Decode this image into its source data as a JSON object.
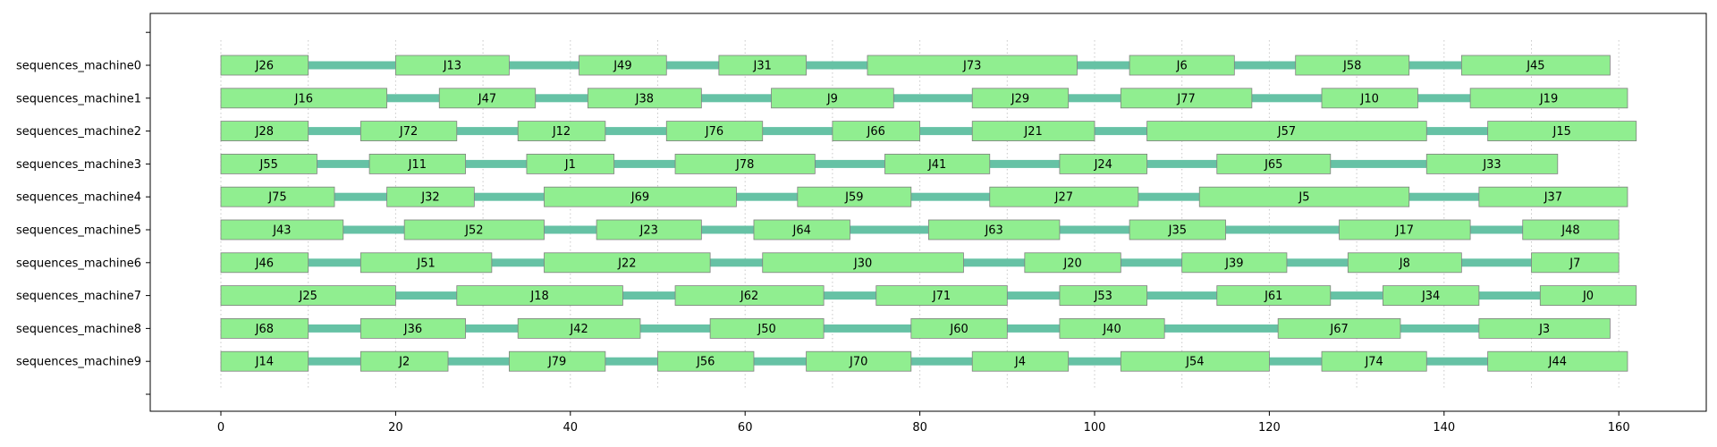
{
  "chart_data": {
    "type": "gantt",
    "x_ticks": [
      0,
      20,
      40,
      60,
      80,
      100,
      120,
      140,
      160
    ],
    "xlim": [
      -8,
      170
    ],
    "grid": "vertical dotted every 10 units",
    "colors": {
      "job": "#90ee90",
      "job_edge": "#808080",
      "idle": "#66c2a5",
      "grid": "#c8c8c8"
    },
    "machines": [
      {
        "name": "sequences_machine0",
        "end": 159,
        "jobs": [
          {
            "label": "J26",
            "start": 0,
            "end": 10
          },
          {
            "label": "J13",
            "start": 20,
            "end": 33
          },
          {
            "label": "J49",
            "start": 41,
            "end": 51
          },
          {
            "label": "J31",
            "start": 57,
            "end": 67
          },
          {
            "label": "J73",
            "start": 74,
            "end": 98
          },
          {
            "label": "J6",
            "start": 104,
            "end": 116
          },
          {
            "label": "J58",
            "start": 123,
            "end": 136
          },
          {
            "label": "J45",
            "start": 142,
            "end": 159
          }
        ]
      },
      {
        "name": "sequences_machine1",
        "end": 161,
        "jobs": [
          {
            "label": "J16",
            "start": 0,
            "end": 19
          },
          {
            "label": "J47",
            "start": 25,
            "end": 36
          },
          {
            "label": "J38",
            "start": 42,
            "end": 55
          },
          {
            "label": "J9",
            "start": 63,
            "end": 77
          },
          {
            "label": "J29",
            "start": 86,
            "end": 97
          },
          {
            "label": "J77",
            "start": 103,
            "end": 118
          },
          {
            "label": "J10",
            "start": 126,
            "end": 137
          },
          {
            "label": "J19",
            "start": 143,
            "end": 161
          }
        ]
      },
      {
        "name": "sequences_machine2",
        "end": 162,
        "jobs": [
          {
            "label": "J28",
            "start": 0,
            "end": 10
          },
          {
            "label": "J72",
            "start": 16,
            "end": 27
          },
          {
            "label": "J12",
            "start": 34,
            "end": 44
          },
          {
            "label": "J76",
            "start": 51,
            "end": 62
          },
          {
            "label": "J66",
            "start": 70,
            "end": 80
          },
          {
            "label": "J21",
            "start": 86,
            "end": 100
          },
          {
            "label": "J57",
            "start": 106,
            "end": 138
          },
          {
            "label": "J15",
            "start": 145,
            "end": 162
          }
        ]
      },
      {
        "name": "sequences_machine3",
        "end": 153,
        "jobs": [
          {
            "label": "J55",
            "start": 0,
            "end": 11
          },
          {
            "label": "J11",
            "start": 17,
            "end": 28
          },
          {
            "label": "J1",
            "start": 35,
            "end": 45
          },
          {
            "label": "J78",
            "start": 52,
            "end": 68
          },
          {
            "label": "J41",
            "start": 76,
            "end": 88
          },
          {
            "label": "J24",
            "start": 96,
            "end": 106
          },
          {
            "label": "J65",
            "start": 114,
            "end": 127
          },
          {
            "label": "J33",
            "start": 138,
            "end": 153
          }
        ]
      },
      {
        "name": "sequences_machine4",
        "end": 161,
        "jobs": [
          {
            "label": "J75",
            "start": 0,
            "end": 13
          },
          {
            "label": "J32",
            "start": 19,
            "end": 29
          },
          {
            "label": "J69",
            "start": 37,
            "end": 59
          },
          {
            "label": "J59",
            "start": 66,
            "end": 79
          },
          {
            "label": "J27",
            "start": 88,
            "end": 105
          },
          {
            "label": "J5",
            "start": 112,
            "end": 136
          },
          {
            "label": "J37",
            "start": 144,
            "end": 161
          }
        ]
      },
      {
        "name": "sequences_machine5",
        "end": 160,
        "jobs": [
          {
            "label": "J43",
            "start": 0,
            "end": 14
          },
          {
            "label": "J52",
            "start": 21,
            "end": 37
          },
          {
            "label": "J23",
            "start": 43,
            "end": 55
          },
          {
            "label": "J64",
            "start": 61,
            "end": 72
          },
          {
            "label": "J63",
            "start": 81,
            "end": 96
          },
          {
            "label": "J35",
            "start": 104,
            "end": 115
          },
          {
            "label": "J17",
            "start": 128,
            "end": 143
          },
          {
            "label": "J48",
            "start": 149,
            "end": 160
          }
        ]
      },
      {
        "name": "sequences_machine6",
        "end": 160,
        "jobs": [
          {
            "label": "J46",
            "start": 0,
            "end": 10
          },
          {
            "label": "J51",
            "start": 16,
            "end": 31
          },
          {
            "label": "J22",
            "start": 37,
            "end": 56
          },
          {
            "label": "J30",
            "start": 62,
            "end": 85
          },
          {
            "label": "J20",
            "start": 92,
            "end": 103
          },
          {
            "label": "J39",
            "start": 110,
            "end": 122
          },
          {
            "label": "J8",
            "start": 129,
            "end": 142
          },
          {
            "label": "J7",
            "start": 150,
            "end": 160
          }
        ]
      },
      {
        "name": "sequences_machine7",
        "end": 162,
        "jobs": [
          {
            "label": "J25",
            "start": 0,
            "end": 20
          },
          {
            "label": "J18",
            "start": 27,
            "end": 46
          },
          {
            "label": "J62",
            "start": 52,
            "end": 69
          },
          {
            "label": "J71",
            "start": 75,
            "end": 90
          },
          {
            "label": "J53",
            "start": 96,
            "end": 106
          },
          {
            "label": "J61",
            "start": 114,
            "end": 127
          },
          {
            "label": "J34",
            "start": 133,
            "end": 144
          },
          {
            "label": "J0",
            "start": 151,
            "end": 162
          }
        ]
      },
      {
        "name": "sequences_machine8",
        "end": 159,
        "jobs": [
          {
            "label": "J68",
            "start": 0,
            "end": 10
          },
          {
            "label": "J36",
            "start": 16,
            "end": 28
          },
          {
            "label": "J42",
            "start": 34,
            "end": 48
          },
          {
            "label": "J50",
            "start": 56,
            "end": 69
          },
          {
            "label": "J60",
            "start": 79,
            "end": 90
          },
          {
            "label": "J40",
            "start": 96,
            "end": 108
          },
          {
            "label": "J67",
            "start": 121,
            "end": 135
          },
          {
            "label": "J3",
            "start": 144,
            "end": 159
          }
        ]
      },
      {
        "name": "sequences_machine9",
        "end": 161,
        "jobs": [
          {
            "label": "J14",
            "start": 0,
            "end": 10
          },
          {
            "label": "J2",
            "start": 16,
            "end": 26
          },
          {
            "label": "J79",
            "start": 33,
            "end": 44
          },
          {
            "label": "J56",
            "start": 50,
            "end": 61
          },
          {
            "label": "J70",
            "start": 67,
            "end": 79
          },
          {
            "label": "J4",
            "start": 86,
            "end": 97
          },
          {
            "label": "J54",
            "start": 103,
            "end": 120
          },
          {
            "label": "J74",
            "start": 126,
            "end": 138
          },
          {
            "label": "J44",
            "start": 145,
            "end": 161
          }
        ]
      }
    ]
  }
}
